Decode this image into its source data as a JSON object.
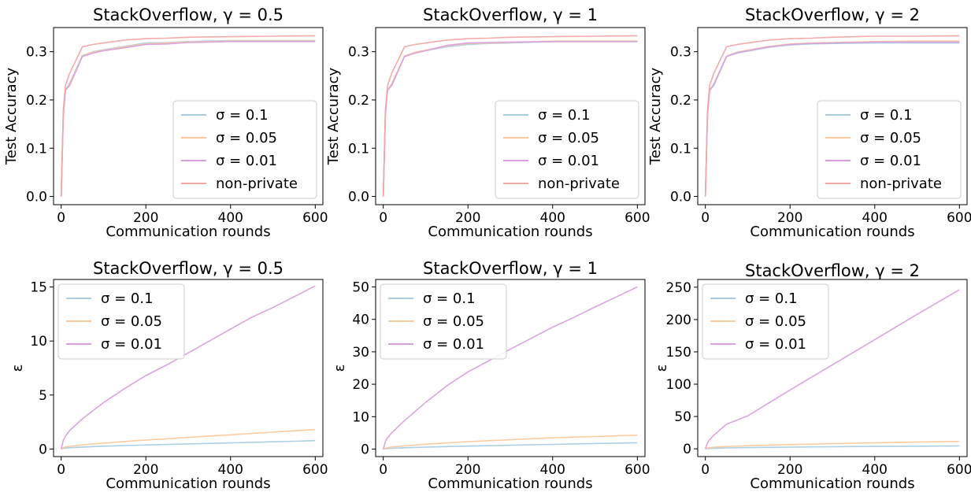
{
  "colors": {
    "sigma_0_1": "#a9cce3",
    "sigma_0_05": "#fbc99c",
    "sigma_0_01": "#d8a0dd",
    "non_private": "#f2a6a6"
  },
  "chart_data": [
    {
      "type": "line",
      "title": "StackOverflow, γ = 0.5",
      "xlabel": "Communication rounds",
      "ylabel": "Test Accuracy",
      "xlim": [
        -18,
        618
      ],
      "ylim": [
        -0.017,
        0.35
      ],
      "xticks": [
        0,
        200,
        400,
        600
      ],
      "xtick_labels": [
        "0",
        "200",
        "400",
        "600"
      ],
      "yticks": [
        0.0,
        0.1,
        0.2,
        0.3
      ],
      "ytick_labels": [
        "0.0",
        "0.1",
        "0.2",
        "0.3"
      ],
      "legend_position": "lower-right",
      "x": [
        0,
        5,
        10,
        20,
        50,
        75,
        100,
        150,
        200,
        250,
        300,
        400,
        500,
        600
      ],
      "series": [
        {
          "name": "σ = 0.1",
          "color_key": "sigma_0_1",
          "values": [
            0.0,
            0.17,
            0.22,
            0.235,
            0.292,
            0.3,
            0.304,
            0.311,
            0.318,
            0.319,
            0.321,
            0.323,
            0.323,
            0.323
          ]
        },
        {
          "name": "σ = 0.05",
          "color_key": "sigma_0_05",
          "values": [
            0.0,
            0.17,
            0.22,
            0.233,
            0.292,
            0.299,
            0.303,
            0.31,
            0.316,
            0.318,
            0.32,
            0.322,
            0.322,
            0.322
          ]
        },
        {
          "name": "σ = 0.01",
          "color_key": "sigma_0_01",
          "values": [
            0.0,
            0.17,
            0.22,
            0.23,
            0.29,
            0.297,
            0.302,
            0.308,
            0.315,
            0.316,
            0.319,
            0.321,
            0.321,
            0.321
          ]
        },
        {
          "name": "non-private",
          "color_key": "non_private",
          "values": [
            0.0,
            0.18,
            0.23,
            0.255,
            0.31,
            0.315,
            0.318,
            0.324,
            0.327,
            0.328,
            0.33,
            0.331,
            0.332,
            0.333
          ]
        }
      ]
    },
    {
      "type": "line",
      "title": "StackOverflow, γ = 1",
      "xlabel": "Communication rounds",
      "ylabel": "Test Accuracy",
      "xlim": [
        -18,
        618
      ],
      "ylim": [
        -0.017,
        0.35
      ],
      "xticks": [
        0,
        200,
        400,
        600
      ],
      "xtick_labels": [
        "0",
        "200",
        "400",
        "600"
      ],
      "yticks": [
        0.0,
        0.1,
        0.2,
        0.3
      ],
      "ytick_labels": [
        "0.0",
        "0.1",
        "0.2",
        "0.3"
      ],
      "legend_position": "lower-right",
      "x": [
        0,
        5,
        10,
        20,
        50,
        75,
        100,
        150,
        200,
        250,
        300,
        400,
        500,
        600
      ],
      "series": [
        {
          "name": "σ = 0.1",
          "color_key": "sigma_0_1",
          "values": [
            0.0,
            0.17,
            0.22,
            0.233,
            0.29,
            0.298,
            0.302,
            0.31,
            0.315,
            0.317,
            0.318,
            0.321,
            0.321,
            0.321
          ]
        },
        {
          "name": "σ = 0.05",
          "color_key": "sigma_0_05",
          "values": [
            0.0,
            0.17,
            0.22,
            0.233,
            0.291,
            0.299,
            0.303,
            0.312,
            0.317,
            0.318,
            0.319,
            0.322,
            0.322,
            0.322
          ]
        },
        {
          "name": "σ = 0.01",
          "color_key": "sigma_0_01",
          "values": [
            0.0,
            0.17,
            0.22,
            0.23,
            0.29,
            0.297,
            0.302,
            0.313,
            0.318,
            0.319,
            0.32,
            0.321,
            0.321,
            0.321
          ]
        },
        {
          "name": "non-private",
          "color_key": "non_private",
          "values": [
            0.0,
            0.18,
            0.23,
            0.255,
            0.31,
            0.315,
            0.318,
            0.324,
            0.327,
            0.328,
            0.33,
            0.331,
            0.332,
            0.333
          ]
        }
      ]
    },
    {
      "type": "line",
      "title": "StackOverflow, γ = 2",
      "xlabel": "Communication rounds",
      "ylabel": "Test Accuracy",
      "xlim": [
        -18,
        618
      ],
      "ylim": [
        -0.017,
        0.35
      ],
      "xticks": [
        0,
        200,
        400,
        600
      ],
      "xtick_labels": [
        "0",
        "200",
        "400",
        "600"
      ],
      "yticks": [
        0.0,
        0.1,
        0.2,
        0.3
      ],
      "ytick_labels": [
        "0.0",
        "0.1",
        "0.2",
        "0.3"
      ],
      "legend_position": "lower-right",
      "x": [
        0,
        5,
        10,
        20,
        50,
        75,
        100,
        150,
        200,
        250,
        300,
        400,
        500,
        600
      ],
      "series": [
        {
          "name": "σ = 0.1",
          "color_key": "sigma_0_1",
          "values": [
            0.0,
            0.17,
            0.22,
            0.23,
            0.29,
            0.297,
            0.301,
            0.309,
            0.314,
            0.316,
            0.317,
            0.318,
            0.318,
            0.318
          ]
        },
        {
          "name": "σ = 0.05",
          "color_key": "sigma_0_05",
          "values": [
            0.0,
            0.17,
            0.22,
            0.233,
            0.291,
            0.299,
            0.303,
            0.311,
            0.316,
            0.318,
            0.319,
            0.321,
            0.322,
            0.322
          ]
        },
        {
          "name": "σ = 0.01",
          "color_key": "sigma_0_01",
          "values": [
            0.0,
            0.17,
            0.22,
            0.232,
            0.29,
            0.298,
            0.302,
            0.31,
            0.315,
            0.317,
            0.318,
            0.32,
            0.32,
            0.32
          ]
        },
        {
          "name": "non-private",
          "color_key": "non_private",
          "values": [
            0.0,
            0.18,
            0.23,
            0.255,
            0.31,
            0.315,
            0.318,
            0.324,
            0.327,
            0.328,
            0.33,
            0.332,
            0.332,
            0.333
          ]
        }
      ]
    },
    {
      "type": "line",
      "title": "StackOverflow, γ = 0.5",
      "xlabel": "Communication rounds",
      "ylabel": "ε",
      "xlim": [
        -18,
        618
      ],
      "ylim": [
        -0.7,
        15.7
      ],
      "xticks": [
        0,
        200,
        400,
        600
      ],
      "xtick_labels": [
        "0",
        "200",
        "400",
        "600"
      ],
      "yticks": [
        0,
        5,
        10,
        15
      ],
      "ytick_labels": [
        "0",
        "5",
        "10",
        "15"
      ],
      "legend_position": "upper-left",
      "x": [
        0,
        5,
        10,
        20,
        50,
        100,
        150,
        200,
        250,
        300,
        350,
        400,
        450,
        500,
        550,
        600
      ],
      "series": [
        {
          "name": "σ = 0.1",
          "color_key": "sigma_0_1",
          "values": [
            0,
            0.06,
            0.09,
            0.12,
            0.18,
            0.26,
            0.32,
            0.37,
            0.42,
            0.47,
            0.52,
            0.57,
            0.62,
            0.67,
            0.72,
            0.78
          ]
        },
        {
          "name": "σ = 0.05",
          "color_key": "sigma_0_05",
          "values": [
            0,
            0.13,
            0.19,
            0.25,
            0.38,
            0.55,
            0.7,
            0.83,
            0.95,
            1.07,
            1.2,
            1.32,
            1.44,
            1.56,
            1.68,
            1.8
          ]
        },
        {
          "name": "σ = 0.01",
          "color_key": "sigma_0_01",
          "values": [
            0,
            0.8,
            1.2,
            1.7,
            2.8,
            4.3,
            5.6,
            6.8,
            7.8,
            8.9,
            10.0,
            11.1,
            12.2,
            13.1,
            14.1,
            15.1
          ]
        }
      ]
    },
    {
      "type": "line",
      "title": "StackOverflow, γ = 1",
      "xlabel": "Communication rounds",
      "ylabel": "ε",
      "xlim": [
        -18,
        618
      ],
      "ylim": [
        -2.3,
        52.3
      ],
      "xticks": [
        0,
        200,
        400,
        600
      ],
      "xtick_labels": [
        "0",
        "200",
        "400",
        "600"
      ],
      "yticks": [
        0,
        10,
        20,
        30,
        40,
        50
      ],
      "ytick_labels": [
        "0",
        "10",
        "20",
        "30",
        "40",
        "50"
      ],
      "legend_position": "upper-left",
      "x": [
        0,
        5,
        10,
        20,
        50,
        100,
        150,
        200,
        250,
        300,
        350,
        400,
        450,
        500,
        550,
        600
      ],
      "series": [
        {
          "name": "σ = 0.1",
          "color_key": "sigma_0_1",
          "values": [
            0,
            0.12,
            0.18,
            0.26,
            0.42,
            0.62,
            0.78,
            0.92,
            1.06,
            1.2,
            1.34,
            1.47,
            1.6,
            1.72,
            1.84,
            1.96
          ]
        },
        {
          "name": "σ = 0.05",
          "color_key": "sigma_0_05",
          "values": [
            0,
            0.3,
            0.45,
            0.65,
            1.0,
            1.5,
            1.9,
            2.3,
            2.6,
            2.9,
            3.2,
            3.5,
            3.7,
            3.9,
            4.1,
            4.3
          ]
        },
        {
          "name": "σ = 0.01",
          "color_key": "sigma_0_01",
          "values": [
            0,
            2.3,
            3.5,
            5.0,
            8.8,
            14.4,
            19.5,
            23.8,
            27.3,
            30.8,
            34.2,
            37.6,
            40.6,
            43.8,
            46.9,
            50.0
          ]
        }
      ]
    },
    {
      "type": "line",
      "title": "StackOverflow, γ = 2",
      "xlabel": "Communication rounds",
      "ylabel": "ε",
      "xlim": [
        -18,
        618
      ],
      "ylim": [
        -12,
        262
      ],
      "xticks": [
        0,
        200,
        400,
        600
      ],
      "xtick_labels": [
        "0",
        "200",
        "400",
        "600"
      ],
      "yticks": [
        0,
        50,
        100,
        150,
        200,
        250
      ],
      "ytick_labels": [
        "0",
        "50",
        "100",
        "150",
        "200",
        "250"
      ],
      "legend_position": "upper-left",
      "x": [
        0,
        5,
        10,
        20,
        50,
        100,
        200,
        300,
        400,
        500,
        600
      ],
      "series": [
        {
          "name": "σ = 0.1",
          "color_key": "sigma_0_1",
          "values": [
            0,
            0.4,
            0.6,
            0.9,
            1.4,
            1.9,
            2.6,
            3.2,
            3.7,
            4.1,
            4.5
          ]
        },
        {
          "name": "σ = 0.05",
          "color_key": "sigma_0_05",
          "values": [
            0,
            1.2,
            1.8,
            2.5,
            3.6,
            4.8,
            6.5,
            8.0,
            9.3,
            10.4,
            11.5
          ]
        },
        {
          "name": "σ = 0.01",
          "color_key": "sigma_0_01",
          "values": [
            0,
            9,
            14,
            21,
            38,
            51,
            91,
            130,
            169,
            208,
            246
          ]
        }
      ]
    }
  ]
}
